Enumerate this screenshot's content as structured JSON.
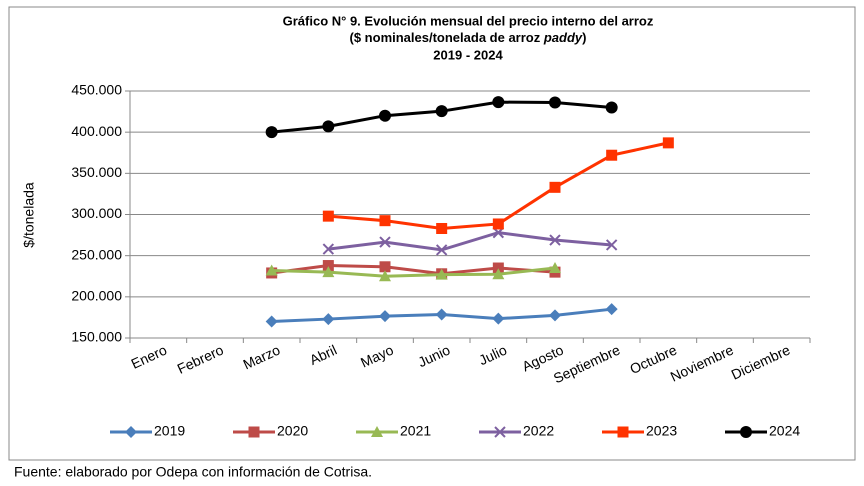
{
  "chart_data": {
    "type": "line",
    "title": "Gráfico N° 9. Evolución mensual del precio interno del arroz",
    "subtitle_parts": [
      "($ nominales/tonelada de arroz ",
      "paddy",
      ")"
    ],
    "title_years": "2019 - 2024",
    "y_label": "$/tonelada",
    "note": "Fuente: elaborado por Odepa con información de Cotrisa.",
    "categories": [
      "Enero",
      "Febrero",
      "Marzo",
      "Abril",
      "Mayo",
      "Junio",
      "Julio",
      "Agosto",
      "Septiembre",
      "Octubre",
      "Noviembre",
      "Diciembre"
    ],
    "series": [
      {
        "name": "2019",
        "color": "#4a7ebb",
        "marker": "diamond",
        "values": [
          null,
          null,
          170000,
          173000,
          176500,
          178500,
          173500,
          177500,
          185000,
          null,
          null,
          null
        ]
      },
      {
        "name": "2020",
        "color": "#be4b48",
        "marker": "square",
        "values": [
          null,
          null,
          229000,
          238000,
          236500,
          228000,
          235000,
          230000,
          null,
          null,
          null,
          null
        ]
      },
      {
        "name": "2021",
        "color": "#98b954",
        "marker": "triangle",
        "values": [
          null,
          null,
          232000,
          230000,
          225000,
          227000,
          227500,
          235000,
          null,
          null,
          null,
          null
        ]
      },
      {
        "name": "2022",
        "color": "#7d60a0",
        "marker": "x",
        "values": [
          null,
          null,
          null,
          258000,
          266500,
          257000,
          278000,
          269000,
          263000,
          null,
          null,
          null
        ]
      },
      {
        "name": "2023",
        "color": "#ff3300",
        "marker": "square",
        "values": [
          null,
          null,
          null,
          298000,
          292500,
          283000,
          288500,
          333000,
          372000,
          387000,
          null,
          null
        ]
      },
      {
        "name": "2024",
        "color": "#000000",
        "marker": "circle",
        "values": [
          null,
          null,
          400000,
          407000,
          420000,
          425500,
          436500,
          436000,
          430000,
          null,
          null,
          null
        ]
      }
    ],
    "ylim": [
      150000,
      450000
    ],
    "yticks": [
      {
        "value": 150000,
        "label": "150.000"
      },
      {
        "value": 200000,
        "label": "200.000"
      },
      {
        "value": 250000,
        "label": "250.000"
      },
      {
        "value": 300000,
        "label": "300.000"
      },
      {
        "value": 350000,
        "label": "350.000"
      },
      {
        "value": 400000,
        "label": "400.000"
      },
      {
        "value": 450000,
        "label": "450.000"
      }
    ],
    "grid": true,
    "legend": "bottom"
  }
}
